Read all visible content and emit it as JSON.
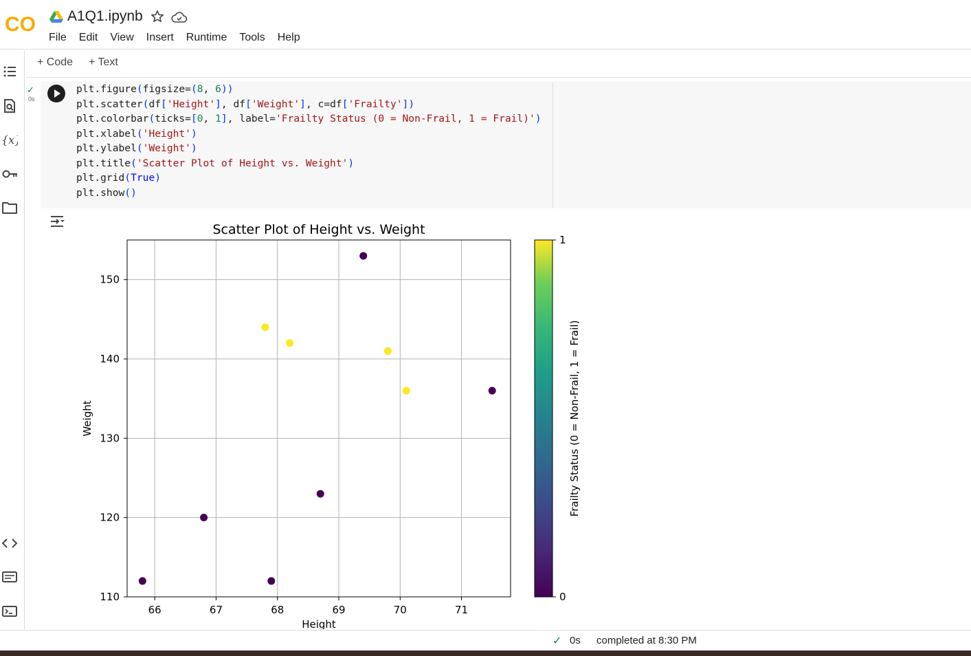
{
  "app": {
    "title": "A1Q1.ipynb",
    "logo_text": "CO",
    "icons": [
      "colab-logo-icon",
      "google-drive-icon",
      "star-icon",
      "cloud-icon"
    ]
  },
  "menu": [
    "File",
    "Edit",
    "View",
    "Insert",
    "Runtime",
    "Tools",
    "Help"
  ],
  "toolbar": {
    "add_code": "+ Code",
    "add_text": "+ Text"
  },
  "rail_icons": [
    "table-of-contents-icon",
    "find-replace-icon",
    "variables-icon",
    "secrets-key-icon",
    "files-folder-icon",
    "code-snippets-icon",
    "command-palette-icon",
    "terminal-icon"
  ],
  "cell": {
    "exec_check": "✓",
    "exec_time": "0s",
    "code_lines": [
      "plt.figure(figsize=(8, 6))",
      "plt.scatter(df['Height'], df['Weight'], c=df['Frailty'])",
      "plt.colorbar(ticks=[0, 1], label='Frailty Status (0 = Non-Frail, 1 = Frail)')",
      "plt.xlabel('Height')",
      "plt.ylabel('Weight')",
      "plt.title('Scatter Plot of Height vs. Weight')",
      "plt.grid(True)",
      "plt.show()"
    ]
  },
  "chart_data": {
    "type": "scatter",
    "title": "Scatter Plot of Height vs. Weight",
    "xlabel": "Height",
    "ylabel": "Weight",
    "xlim": [
      65.55,
      71.8
    ],
    "ylim": [
      110,
      155
    ],
    "xticks": [
      66,
      67,
      68,
      69,
      70,
      71
    ],
    "yticks": [
      110,
      120,
      130,
      140,
      150
    ],
    "grid": true,
    "points": [
      {
        "x": 65.8,
        "y": 112,
        "frailty": 0
      },
      {
        "x": 66.8,
        "y": 120,
        "frailty": 0
      },
      {
        "x": 67.8,
        "y": 144,
        "frailty": 1
      },
      {
        "x": 67.9,
        "y": 112,
        "frailty": 0
      },
      {
        "x": 68.2,
        "y": 142,
        "frailty": 1
      },
      {
        "x": 68.7,
        "y": 123,
        "frailty": 0
      },
      {
        "x": 69.4,
        "y": 153,
        "frailty": 0
      },
      {
        "x": 69.8,
        "y": 141,
        "frailty": 1
      },
      {
        "x": 70.1,
        "y": 136,
        "frailty": 1
      },
      {
        "x": 71.5,
        "y": 136,
        "frailty": 0
      }
    ],
    "colorbar": {
      "label": "Frailty Status (0 = Non-Frail, 1 = Frail)",
      "ticks": [
        "0",
        "1"
      ],
      "cmap": "viridis",
      "color_min": "#440154",
      "color_max": "#fde725"
    }
  },
  "status": {
    "check": "✓",
    "time": "0s",
    "completed": "completed at 8:30 PM"
  }
}
